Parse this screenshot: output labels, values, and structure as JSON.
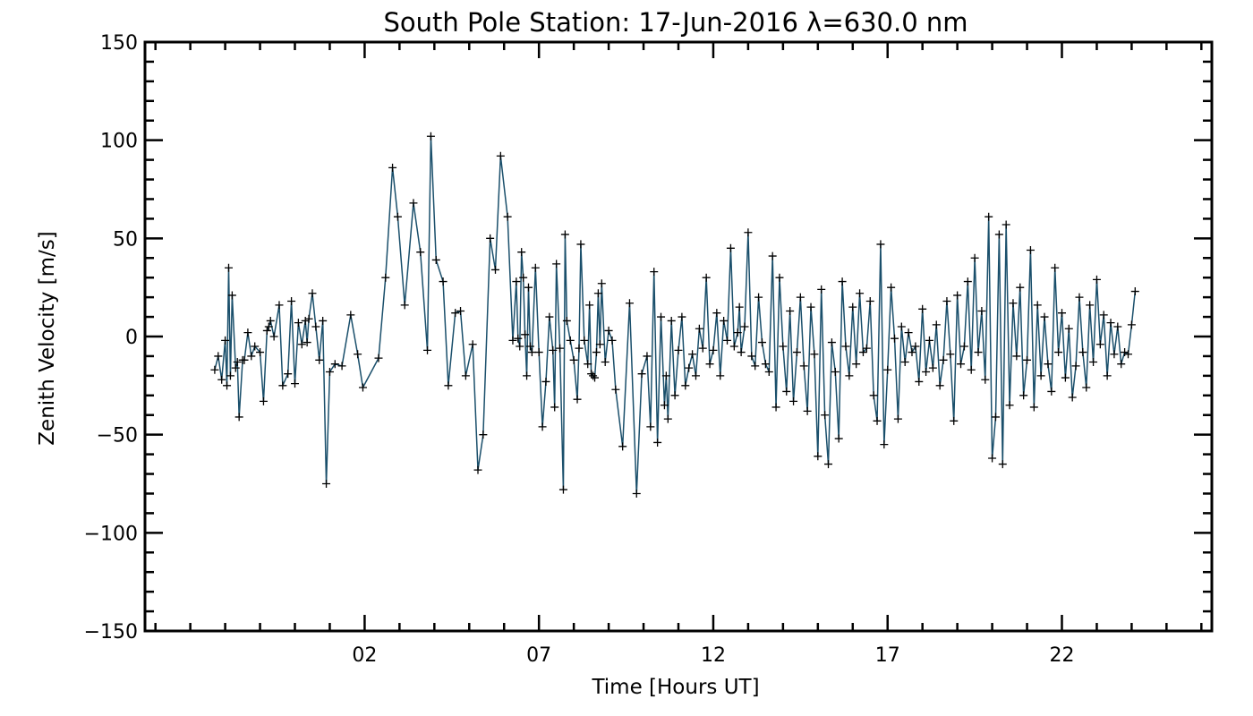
{
  "chart_data": {
    "type": "line",
    "title": "South Pole Station: 17-Jun-2016 λ=630.0 nm",
    "xlabel": "Time [Hours UT]",
    "ylabel": "Zenith Velocity [m/s]",
    "xlim": [
      -4.3,
      26.3
    ],
    "ylim": [
      -150,
      150
    ],
    "x_major_ticks": [
      {
        "value": 2,
        "label": "02"
      },
      {
        "value": 7,
        "label": "07"
      },
      {
        "value": 12,
        "label": "12"
      },
      {
        "value": 17,
        "label": "17"
      },
      {
        "value": 22,
        "label": "22"
      }
    ],
    "y_major_ticks": [
      {
        "value": -150,
        "label": "−150"
      },
      {
        "value": -100,
        "label": "−100"
      },
      {
        "value": -50,
        "label": "−50"
      },
      {
        "value": 0,
        "label": "0"
      },
      {
        "value": 50,
        "label": "50"
      },
      {
        "value": 100,
        "label": "100"
      },
      {
        "value": 150,
        "label": "150"
      }
    ],
    "grid": false,
    "legend": "none",
    "marker": "plus",
    "line_color": "#1a4f6b",
    "series": [
      {
        "x": [
          -2.3,
          -2.2,
          -2.1,
          -2.0,
          -1.95,
          -1.9,
          -1.85,
          -1.8,
          -1.7,
          -1.65,
          -1.6,
          -1.5,
          -1.45,
          -1.35,
          -1.25,
          -1.15,
          -1.0,
          -0.9,
          -0.8,
          -0.75,
          -0.7,
          -0.6,
          -0.45,
          -0.35,
          -0.2,
          -0.1,
          0.0,
          0.1,
          0.2,
          0.3,
          0.35,
          0.4,
          0.5,
          0.6,
          0.7,
          0.8,
          0.9,
          1.0,
          1.15,
          1.35,
          1.6,
          1.8,
          1.95,
          2.4,
          2.6,
          2.8,
          2.95,
          3.15,
          3.4,
          3.6,
          3.8,
          3.9,
          4.05,
          4.25,
          4.4,
          4.6,
          4.75,
          4.9,
          5.1,
          5.25,
          5.4,
          5.6,
          5.75,
          5.9,
          6.1,
          6.25,
          6.35,
          6.4,
          6.45,
          6.5,
          6.55,
          6.6,
          6.65,
          6.7,
          6.75,
          6.8,
          6.9,
          7.0,
          7.1,
          7.2,
          7.3,
          7.4,
          7.45,
          7.5,
          7.6,
          7.7,
          7.75,
          7.8,
          7.9,
          8.0,
          8.1,
          8.15,
          8.2,
          8.3,
          8.4,
          8.45,
          8.5,
          8.55,
          8.6,
          8.65,
          8.7,
          8.75,
          8.8,
          8.9,
          9.0,
          9.1,
          9.2,
          9.4,
          9.6,
          9.8,
          9.95,
          10.1,
          10.2,
          10.3,
          10.4,
          10.5,
          10.6,
          10.65,
          10.7,
          10.8,
          10.9,
          11.0,
          11.1,
          11.2,
          11.3,
          11.4,
          11.5,
          11.6,
          11.7,
          11.8,
          11.9,
          12.0,
          12.1,
          12.2,
          12.3,
          12.4,
          12.5,
          12.6,
          12.7,
          12.75,
          12.8,
          12.9,
          13.0,
          13.1,
          13.2,
          13.3,
          13.4,
          13.5,
          13.6,
          13.7,
          13.8,
          13.9,
          14.0,
          14.1,
          14.2,
          14.3,
          14.4,
          14.5,
          14.6,
          14.7,
          14.8,
          14.9,
          15.0,
          15.1,
          15.2,
          15.3,
          15.4,
          15.5,
          15.6,
          15.7,
          15.8,
          15.9,
          16.0,
          16.1,
          16.2,
          16.3,
          16.4,
          16.5,
          16.6,
          16.7,
          16.8,
          16.9,
          17.0,
          17.1,
          17.2,
          17.3,
          17.4,
          17.5,
          17.6,
          17.7,
          17.8,
          17.9,
          18.0,
          18.1,
          18.2,
          18.3,
          18.4,
          18.5,
          18.6,
          18.7,
          18.8,
          18.9,
          19.0,
          19.1,
          19.2,
          19.3,
          19.4,
          19.5,
          19.6,
          19.7,
          19.8,
          19.9,
          20.0,
          20.1,
          20.2,
          20.3,
          20.4,
          20.5,
          20.6,
          20.7,
          20.8,
          20.9,
          21.0,
          21.1,
          21.2,
          21.3,
          21.4,
          21.5,
          21.6,
          21.7,
          21.8,
          21.9,
          22.0,
          22.1,
          22.2,
          22.3,
          22.4,
          22.5,
          22.6,
          22.7,
          22.8,
          22.9,
          23.0,
          23.1,
          23.2,
          23.3,
          23.4,
          23.5,
          23.6,
          23.7,
          23.8,
          23.9,
          24.0,
          24.1
        ],
        "y": [
          -17,
          -10,
          -22,
          -2,
          -25,
          35,
          -20,
          21,
          -16,
          -13,
          -41,
          -12,
          -12,
          2,
          -10,
          -5,
          -8,
          -33,
          3,
          5,
          8,
          0,
          16,
          -25,
          -19,
          18,
          -24,
          7,
          -4,
          8,
          -3,
          9,
          22,
          5,
          -12,
          8,
          -75,
          -18,
          -14,
          -15,
          11,
          -9,
          -26,
          -11,
          30,
          86,
          61,
          16,
          68,
          43,
          -7,
          102,
          39,
          28,
          -25,
          12,
          13,
          -20,
          -4,
          -68,
          -50,
          50,
          34,
          92,
          61,
          -2,
          28,
          -1,
          -5,
          43,
          30,
          1,
          -20,
          25,
          -5,
          -8,
          35,
          -8,
          -46,
          -23,
          10,
          -7,
          -36,
          37,
          -6,
          -78,
          52,
          8,
          -2,
          -12,
          -32,
          -6,
          47,
          -2,
          -14,
          16,
          -19,
          -20,
          -21,
          -8,
          22,
          -4,
          27,
          -13,
          3,
          -2,
          -27,
          -56,
          17,
          -80,
          -19,
          -10,
          -46,
          33,
          -54,
          10,
          -35,
          -20,
          -42,
          8,
          -30,
          -7,
          10,
          -25,
          -16,
          -9,
          -20,
          4,
          -6,
          30,
          -14,
          -7,
          12,
          -20,
          8,
          -2,
          45,
          -5,
          2,
          15,
          -8,
          5,
          53,
          -10,
          -15,
          20,
          -3,
          -14,
          -18,
          41,
          -36,
          30,
          -5,
          -28,
          13,
          -33,
          -8,
          20,
          -15,
          -38,
          15,
          -9,
          -61,
          24,
          -40,
          -65,
          -3,
          -18,
          -52,
          28,
          -5,
          -20,
          15,
          -14,
          22,
          -8,
          -6,
          18,
          -30,
          -43,
          47,
          -55,
          -17,
          25,
          -1,
          -42,
          5,
          -13,
          2,
          -8,
          -5,
          -23,
          14,
          -18,
          -2,
          -16,
          6,
          -25,
          -12,
          18,
          -9,
          -43,
          21,
          -14,
          -5,
          28,
          -17,
          40,
          -8,
          13,
          -22,
          61,
          -62,
          -41,
          52,
          -65,
          57,
          -35,
          17,
          -10,
          25,
          -30,
          -12,
          44,
          -36,
          16,
          -20,
          10,
          -14,
          -28,
          35,
          -8,
          12,
          -21,
          4,
          -31,
          -15,
          20,
          -8,
          -26,
          16,
          -13,
          29,
          -4,
          11,
          -20,
          7,
          -9,
          5,
          -14,
          -8,
          -9,
          6,
          23
        ]
      }
    ]
  }
}
